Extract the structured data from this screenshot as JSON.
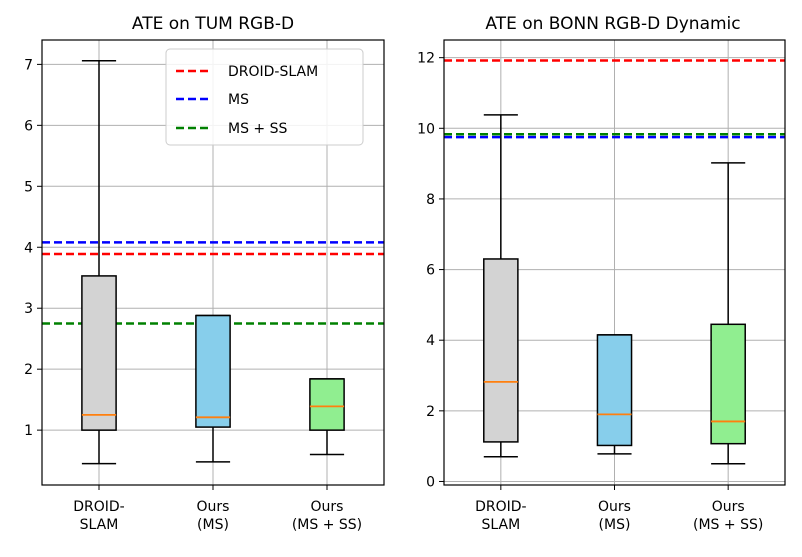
{
  "chart_data": [
    {
      "type": "box",
      "title": "ATE on TUM RGB-D",
      "xlabel": "",
      "ylabel": "",
      "ylim": [
        0.1,
        7.4
      ],
      "yticks": [
        1,
        2,
        3,
        4,
        5,
        6,
        7
      ],
      "grid": true,
      "categories": [
        {
          "line1": "DROID-",
          "line2": "SLAM"
        },
        {
          "line1": "Ours",
          "line2": "(MS)"
        },
        {
          "line1": "Ours",
          "line2": "(MS + SS)"
        }
      ],
      "boxes": [
        {
          "name": "DROID-SLAM",
          "whisker_low": 0.45,
          "q1": 1.0,
          "median": 1.25,
          "q3": 3.53,
          "whisker_high": 7.06,
          "color": "#d3d3d3"
        },
        {
          "name": "Ours (MS)",
          "whisker_low": 0.48,
          "q1": 1.05,
          "median": 1.21,
          "q3": 2.88,
          "whisker_high": 2.88,
          "color": "#87ceeb"
        },
        {
          "name": "Ours (MS + SS)",
          "whisker_low": 0.6,
          "q1": 1.0,
          "median": 1.39,
          "q3": 1.84,
          "whisker_high": 1.84,
          "color": "#90ee90"
        }
      ],
      "reference_lines": [
        {
          "label": "DROID-SLAM",
          "value": 3.89,
          "color": "#ff0000"
        },
        {
          "label": "MS",
          "value": 4.08,
          "color": "#0000ff"
        },
        {
          "label": "MS + SS",
          "value": 2.75,
          "color": "#008000"
        }
      ],
      "legend": {
        "placement": "top-right",
        "entries": [
          "DROID-SLAM",
          "MS",
          "MS + SS"
        ]
      }
    },
    {
      "type": "box",
      "title": "ATE on BONN RGB-D Dynamic",
      "xlabel": "",
      "ylabel": "",
      "ylim": [
        -0.1,
        12.5
      ],
      "yticks": [
        0,
        2,
        4,
        6,
        8,
        10,
        12
      ],
      "grid": true,
      "categories": [
        {
          "line1": "DROID-",
          "line2": "SLAM"
        },
        {
          "line1": "Ours",
          "line2": "(MS)"
        },
        {
          "line1": "Ours",
          "line2": "(MS + SS)"
        }
      ],
      "boxes": [
        {
          "name": "DROID-SLAM",
          "whisker_low": 0.7,
          "q1": 1.12,
          "median": 2.82,
          "q3": 6.3,
          "whisker_high": 10.38,
          "color": "#d3d3d3"
        },
        {
          "name": "Ours (MS)",
          "whisker_low": 0.78,
          "q1": 1.02,
          "median": 1.9,
          "q3": 4.15,
          "whisker_high": 4.15,
          "color": "#87ceeb"
        },
        {
          "name": "Ours (MS + SS)",
          "whisker_low": 0.5,
          "q1": 1.07,
          "median": 1.7,
          "q3": 4.45,
          "whisker_high": 9.02,
          "color": "#90ee90"
        }
      ],
      "reference_lines": [
        {
          "label": "DROID-SLAM",
          "value": 11.92,
          "color": "#ff0000"
        },
        {
          "label": "MS",
          "value": 9.75,
          "color": "#0000ff"
        },
        {
          "label": "MS + SS",
          "value": 9.83,
          "color": "#008000"
        }
      ]
    }
  ]
}
